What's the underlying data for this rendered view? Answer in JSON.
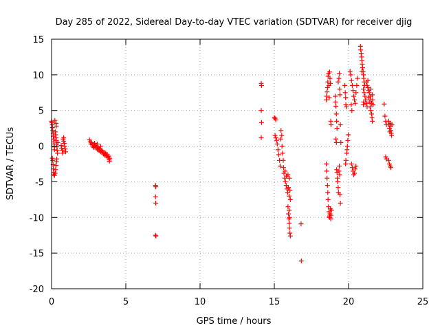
{
  "chart_data": {
    "type": "scatter",
    "title": "Day 285 of 2022, Sidereal Day-to-day VTEC variation (SDTVAR) for receiver djig",
    "xlabel": "GPS time / hours",
    "ylabel": "SDTVAR / TECUs",
    "xlim": [
      0,
      25
    ],
    "ylim": [
      -20,
      15
    ],
    "xticks": [
      0,
      5,
      10,
      15,
      20,
      25
    ],
    "xtick_labels": [
      "0",
      "5",
      "10",
      "15",
      "20",
      "25"
    ],
    "yticks": [
      -20,
      -15,
      -10,
      -5,
      0,
      5,
      10,
      15
    ],
    "ytick_labels": [
      "-20",
      "-15",
      "-10",
      "-5",
      "0",
      "5",
      "10",
      "15"
    ],
    "grid": true,
    "marker": "+",
    "color": "#ff0000",
    "series": [
      {
        "name": "SDTVAR",
        "points": [
          [
            0.0,
            3.5
          ],
          [
            0.02,
            3.3
          ],
          [
            0.05,
            3.0
          ],
          [
            0.06,
            2.6
          ],
          [
            0.08,
            2.2
          ],
          [
            0.1,
            1.8
          ],
          [
            0.12,
            1.4
          ],
          [
            0.14,
            1.0
          ],
          [
            0.15,
            0.6
          ],
          [
            0.17,
            0.3
          ],
          [
            0.19,
            -0.1
          ],
          [
            0.2,
            -0.5
          ],
          [
            0.05,
            -1.7
          ],
          [
            0.08,
            -2.0
          ],
          [
            0.1,
            -2.6
          ],
          [
            0.12,
            -3.2
          ],
          [
            0.14,
            -3.7
          ],
          [
            0.16,
            -4.0
          ],
          [
            0.2,
            -4.1
          ],
          [
            0.24,
            -3.8
          ],
          [
            0.28,
            -3.3
          ],
          [
            0.3,
            -2.7
          ],
          [
            0.33,
            -2.2
          ],
          [
            0.35,
            -1.8
          ],
          [
            0.25,
            2.0
          ],
          [
            0.28,
            1.6
          ],
          [
            0.3,
            1.2
          ],
          [
            0.32,
            0.8
          ],
          [
            0.34,
            0.3
          ],
          [
            0.36,
            -0.1
          ],
          [
            0.38,
            -0.6
          ],
          [
            0.4,
            -1.0
          ],
          [
            0.3,
            3.2
          ],
          [
            0.32,
            2.8
          ],
          [
            0.22,
            3.6
          ],
          [
            0.42,
            0.5
          ],
          [
            0.65,
            0.1
          ],
          [
            0.68,
            -0.3
          ],
          [
            0.72,
            -0.6
          ],
          [
            0.75,
            -1.0
          ],
          [
            0.78,
            1.0
          ],
          [
            0.82,
            0.7
          ],
          [
            0.85,
            0.4
          ],
          [
            0.88,
            0.0
          ],
          [
            0.92,
            -0.4
          ],
          [
            0.95,
            -0.8
          ],
          [
            0.82,
            1.2
          ],
          [
            2.55,
            0.9
          ],
          [
            2.6,
            0.6
          ],
          [
            2.65,
            0.3
          ],
          [
            2.7,
            0.5
          ],
          [
            2.75,
            0.2
          ],
          [
            2.8,
            0.0
          ],
          [
            2.85,
            -0.2
          ],
          [
            2.9,
            0.4
          ],
          [
            2.95,
            0.1
          ],
          [
            3.0,
            -0.1
          ],
          [
            3.05,
            -0.3
          ],
          [
            3.1,
            -0.5
          ],
          [
            3.15,
            -0.2
          ],
          [
            3.2,
            -0.6
          ],
          [
            3.25,
            -0.4
          ],
          [
            3.3,
            -0.8
          ],
          [
            3.35,
            -0.6
          ],
          [
            3.4,
            -0.9
          ],
          [
            3.45,
            -0.7
          ],
          [
            3.5,
            -1.1
          ],
          [
            3.55,
            -0.9
          ],
          [
            3.6,
            -1.3
          ],
          [
            3.65,
            -1.0
          ],
          [
            3.7,
            -1.4
          ],
          [
            3.75,
            -1.2
          ],
          [
            3.8,
            -1.6
          ],
          [
            3.85,
            -1.4
          ],
          [
            3.88,
            -1.9
          ],
          [
            3.9,
            -2.1
          ],
          [
            3.92,
            -1.7
          ],
          [
            3.08,
            0.3
          ],
          [
            3.3,
            0.0
          ],
          [
            7.0,
            -5.5
          ],
          [
            7.02,
            -5.7
          ],
          [
            7.0,
            -7.1
          ],
          [
            7.02,
            -8.0
          ],
          [
            7.0,
            -12.5
          ],
          [
            7.03,
            -12.6
          ],
          [
            14.12,
            8.8
          ],
          [
            14.14,
            8.5
          ],
          [
            14.12,
            5.0
          ],
          [
            14.14,
            3.3
          ],
          [
            14.12,
            1.2
          ],
          [
            15.0,
            4.0
          ],
          [
            15.05,
            3.9
          ],
          [
            15.1,
            3.7
          ],
          [
            15.05,
            1.5
          ],
          [
            15.1,
            1.2
          ],
          [
            15.15,
            0.8
          ],
          [
            15.2,
            0.3
          ],
          [
            15.25,
            -0.5
          ],
          [
            15.3,
            -1.2
          ],
          [
            15.35,
            -2.0
          ],
          [
            15.4,
            -2.8
          ],
          [
            15.42,
            1.0
          ],
          [
            15.45,
            2.2
          ],
          [
            15.5,
            1.5
          ],
          [
            15.52,
            0.0
          ],
          [
            15.55,
            -1.0
          ],
          [
            15.6,
            -2.0
          ],
          [
            15.62,
            -3.0
          ],
          [
            15.65,
            -3.8
          ],
          [
            15.7,
            -4.5
          ],
          [
            15.72,
            -3.5
          ],
          [
            15.75,
            -5.0
          ],
          [
            15.8,
            -5.5
          ],
          [
            15.82,
            -4.2
          ],
          [
            15.85,
            -6.0
          ],
          [
            15.9,
            -6.5
          ],
          [
            15.92,
            -4.0
          ],
          [
            15.95,
            -5.8
          ],
          [
            16.0,
            -7.0
          ],
          [
            16.02,
            -4.5
          ],
          [
            16.05,
            -6.2
          ],
          [
            16.08,
            -7.5
          ],
          [
            15.92,
            -8.5
          ],
          [
            15.95,
            -9.5
          ],
          [
            15.98,
            -10.2
          ],
          [
            16.0,
            -10.8
          ],
          [
            16.02,
            -11.5
          ],
          [
            16.05,
            -12.2
          ],
          [
            16.08,
            -12.6
          ],
          [
            16.03,
            -10.0
          ],
          [
            16.0,
            -9.0
          ],
          [
            16.8,
            -10.9
          ],
          [
            16.82,
            -16.1
          ],
          [
            18.5,
            6.5
          ],
          [
            18.52,
            7.0
          ],
          [
            18.55,
            7.6
          ],
          [
            18.58,
            8.2
          ],
          [
            18.6,
            9.0
          ],
          [
            18.62,
            9.8
          ],
          [
            18.65,
            10.2
          ],
          [
            18.68,
            8.5
          ],
          [
            18.7,
            6.8
          ],
          [
            18.72,
            10.4
          ],
          [
            18.75,
            9.5
          ],
          [
            18.78,
            8.8
          ],
          [
            18.8,
            3.5
          ],
          [
            18.82,
            3.0
          ],
          [
            18.5,
            -2.5
          ],
          [
            18.52,
            -3.5
          ],
          [
            18.55,
            -4.5
          ],
          [
            18.58,
            -5.5
          ],
          [
            18.6,
            -6.5
          ],
          [
            18.62,
            -7.5
          ],
          [
            18.65,
            -8.5
          ],
          [
            18.68,
            -9.2
          ],
          [
            18.7,
            -9.8
          ],
          [
            18.72,
            -10.0
          ],
          [
            18.75,
            -9.5
          ],
          [
            18.78,
            -8.8
          ],
          [
            18.8,
            -10.2
          ],
          [
            18.82,
            -9.7
          ],
          [
            18.85,
            -9.0
          ],
          [
            19.1,
            7.0
          ],
          [
            19.12,
            6.2
          ],
          [
            19.15,
            5.6
          ],
          [
            19.18,
            4.5
          ],
          [
            19.2,
            3.5
          ],
          [
            19.22,
            2.5
          ],
          [
            19.15,
            1.0
          ],
          [
            19.18,
            0.5
          ],
          [
            19.2,
            -3.3
          ],
          [
            19.22,
            -3.7
          ],
          [
            19.25,
            -4.5
          ],
          [
            19.28,
            -5.0
          ],
          [
            19.3,
            -5.8
          ],
          [
            19.32,
            -6.5
          ],
          [
            19.35,
            -3.5
          ],
          [
            19.38,
            -2.8
          ],
          [
            19.4,
            -4.0
          ],
          [
            19.42,
            -6.8
          ],
          [
            19.45,
            -8.0
          ],
          [
            19.3,
            9.0
          ],
          [
            19.35,
            9.5
          ],
          [
            19.38,
            10.2
          ],
          [
            19.4,
            8.0
          ],
          [
            19.42,
            7.2
          ],
          [
            19.45,
            3.0
          ],
          [
            19.48,
            0.5
          ],
          [
            19.75,
            8.5
          ],
          [
            19.78,
            7.5
          ],
          [
            19.8,
            6.8
          ],
          [
            19.82,
            5.8
          ],
          [
            19.85,
            5.5
          ],
          [
            19.88,
            -1.0
          ],
          [
            19.9,
            -0.5
          ],
          [
            19.92,
            0.0
          ],
          [
            19.95,
            0.8
          ],
          [
            19.98,
            1.6
          ],
          [
            19.8,
            -2.5
          ],
          [
            19.82,
            -2.0
          ],
          [
            20.1,
            10.5
          ],
          [
            20.15,
            10.0
          ],
          [
            20.2,
            9.2
          ],
          [
            20.25,
            8.5
          ],
          [
            20.3,
            7.8
          ],
          [
            20.35,
            7.0
          ],
          [
            20.4,
            6.5
          ],
          [
            20.45,
            6.0
          ],
          [
            20.5,
            7.5
          ],
          [
            20.55,
            8.5
          ],
          [
            20.6,
            9.5
          ],
          [
            20.18,
            5.8
          ],
          [
            20.22,
            5.0
          ],
          [
            20.2,
            -2.5
          ],
          [
            20.25,
            -3.0
          ],
          [
            20.3,
            -3.5
          ],
          [
            20.35,
            -4.0
          ],
          [
            20.4,
            -3.8
          ],
          [
            20.45,
            -3.2
          ],
          [
            20.5,
            -2.8
          ],
          [
            20.8,
            14.0
          ],
          [
            20.82,
            13.5
          ],
          [
            20.85,
            13.0
          ],
          [
            20.88,
            12.5
          ],
          [
            20.9,
            12.0
          ],
          [
            20.92,
            11.5
          ],
          [
            20.95,
            11.0
          ],
          [
            20.98,
            10.5
          ],
          [
            21.0,
            10.0
          ],
          [
            21.02,
            9.5
          ],
          [
            21.05,
            9.0
          ],
          [
            21.08,
            8.5
          ],
          [
            20.9,
            10.5
          ],
          [
            21.0,
            8.0
          ],
          [
            21.05,
            7.5
          ],
          [
            21.1,
            7.0
          ],
          [
            21.15,
            6.5
          ],
          [
            21.2,
            6.0
          ],
          [
            21.25,
            5.5
          ],
          [
            21.0,
            5.8
          ],
          [
            21.02,
            6.2
          ],
          [
            21.2,
            9.0
          ],
          [
            21.25,
            8.5
          ],
          [
            21.3,
            8.2
          ],
          [
            21.35,
            7.8
          ],
          [
            21.4,
            7.5
          ],
          [
            21.45,
            7.0
          ],
          [
            21.5,
            6.5
          ],
          [
            21.55,
            6.0
          ],
          [
            21.3,
            9.2
          ],
          [
            21.35,
            6.8
          ],
          [
            21.4,
            6.2
          ],
          [
            21.45,
            5.5
          ],
          [
            21.5,
            5.0
          ],
          [
            21.55,
            4.5
          ],
          [
            21.58,
            4.0
          ],
          [
            21.6,
            3.5
          ],
          [
            21.62,
            6.5
          ],
          [
            21.65,
            5.8
          ],
          [
            21.6,
            7.2
          ],
          [
            21.5,
            8.0
          ],
          [
            22.4,
            5.9
          ],
          [
            22.45,
            4.2
          ],
          [
            22.5,
            3.5
          ],
          [
            22.55,
            3.0
          ],
          [
            22.5,
            -1.5
          ],
          [
            22.55,
            -1.8
          ],
          [
            22.7,
            3.5
          ],
          [
            22.72,
            3.0
          ],
          [
            22.75,
            2.5
          ],
          [
            22.78,
            2.0
          ],
          [
            22.8,
            3.2
          ],
          [
            22.82,
            2.8
          ],
          [
            22.85,
            2.2
          ],
          [
            22.88,
            1.8
          ],
          [
            22.9,
            1.5
          ],
          [
            22.92,
            3.0
          ],
          [
            22.7,
            -2.0
          ],
          [
            22.75,
            -2.5
          ],
          [
            22.8,
            -2.8
          ],
          [
            22.85,
            -3.0
          ]
        ]
      }
    ]
  }
}
